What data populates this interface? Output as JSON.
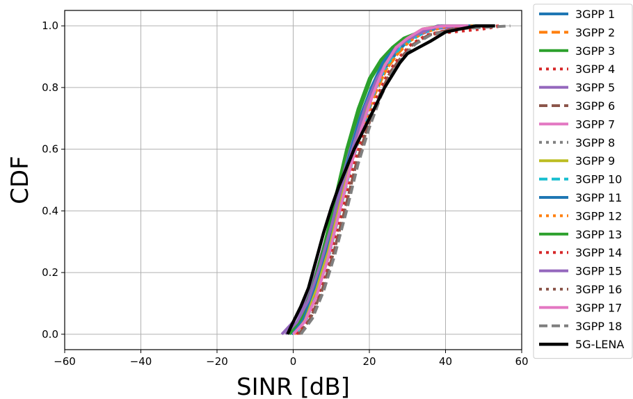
{
  "chart_data": {
    "type": "line",
    "xlabel": "SINR [dB]",
    "ylabel": "CDF",
    "xlim": [
      -60,
      60
    ],
    "ylim": [
      -0.05,
      1.05
    ],
    "xticks": [
      -60,
      -40,
      -20,
      0,
      20,
      40,
      60
    ],
    "yticks": [
      0.0,
      0.2,
      0.4,
      0.6,
      0.8,
      1.0
    ],
    "xtick_labels": [
      "−60",
      "−40",
      "−20",
      "0",
      "20",
      "40",
      "60"
    ],
    "ytick_labels": [
      "0.0",
      "0.2",
      "0.4",
      "0.6",
      "0.8",
      "1.0"
    ],
    "grid": true,
    "legend_position": "outside-right",
    "series": [
      {
        "name": "3GPP 1",
        "color": "#1f77b4",
        "dash": "solid",
        "points": [
          [
            0.0,
            0.0
          ],
          [
            3.0,
            0.05
          ],
          [
            6.0,
            0.14
          ],
          [
            9.0,
            0.26
          ],
          [
            12.0,
            0.41
          ],
          [
            15.0,
            0.56
          ],
          [
            18.0,
            0.68
          ],
          [
            21.0,
            0.78
          ],
          [
            24.0,
            0.86
          ],
          [
            27.0,
            0.91
          ],
          [
            30.0,
            0.95
          ],
          [
            34.0,
            0.98
          ],
          [
            40.0,
            1.0
          ],
          [
            50.0,
            1.0
          ]
        ]
      },
      {
        "name": "3GPP 2",
        "color": "#ff7f0e",
        "dash": "dashed",
        "points": [
          [
            0.5,
            0.0
          ],
          [
            3.5,
            0.05
          ],
          [
            6.5,
            0.14
          ],
          [
            9.5,
            0.26
          ],
          [
            12.5,
            0.41
          ],
          [
            15.5,
            0.56
          ],
          [
            18.5,
            0.68
          ],
          [
            21.5,
            0.78
          ],
          [
            24.5,
            0.86
          ],
          [
            27.5,
            0.91
          ],
          [
            30.5,
            0.95
          ],
          [
            34.5,
            0.98
          ],
          [
            41.0,
            1.0
          ],
          [
            52.0,
            1.0
          ]
        ]
      },
      {
        "name": "3GPP 3",
        "color": "#2ca02c",
        "dash": "solid",
        "points": [
          [
            -0.5,
            0.0
          ],
          [
            2.5,
            0.05
          ],
          [
            5.5,
            0.15
          ],
          [
            8.5,
            0.28
          ],
          [
            11.5,
            0.44
          ],
          [
            14.5,
            0.6
          ],
          [
            17.5,
            0.73
          ],
          [
            20.5,
            0.83
          ],
          [
            23.5,
            0.89
          ],
          [
            26.5,
            0.93
          ],
          [
            29.5,
            0.96
          ],
          [
            33.5,
            0.98
          ],
          [
            39.0,
            1.0
          ],
          [
            48.0,
            1.0
          ]
        ]
      },
      {
        "name": "3GPP 4",
        "color": "#d62728",
        "dash": "dotted",
        "points": [
          [
            1.0,
            0.0
          ],
          [
            4.0,
            0.05
          ],
          [
            7.0,
            0.14
          ],
          [
            10.0,
            0.26
          ],
          [
            13.0,
            0.4
          ],
          [
            16.0,
            0.55
          ],
          [
            19.0,
            0.67
          ],
          [
            22.0,
            0.77
          ],
          [
            25.0,
            0.85
          ],
          [
            28.0,
            0.9
          ],
          [
            31.0,
            0.94
          ],
          [
            35.0,
            0.97
          ],
          [
            42.0,
            0.98
          ],
          [
            50.0,
            0.99
          ],
          [
            55.0,
            1.0
          ]
        ]
      },
      {
        "name": "3GPP 5",
        "color": "#9467bd",
        "dash": "solid",
        "points": [
          [
            -3.0,
            0.0
          ],
          [
            0.0,
            0.04
          ],
          [
            3.0,
            0.1
          ],
          [
            6.0,
            0.2
          ],
          [
            9.0,
            0.33
          ],
          [
            12.0,
            0.47
          ],
          [
            15.0,
            0.6
          ],
          [
            18.0,
            0.72
          ],
          [
            21.0,
            0.81
          ],
          [
            24.0,
            0.88
          ],
          [
            27.0,
            0.93
          ],
          [
            31.0,
            0.96
          ],
          [
            37.0,
            0.99
          ],
          [
            45.0,
            1.0
          ]
        ]
      },
      {
        "name": "3GPP 6",
        "color": "#8c564b",
        "dash": "dashed",
        "points": [
          [
            1.5,
            0.0
          ],
          [
            4.5,
            0.05
          ],
          [
            7.5,
            0.14
          ],
          [
            10.5,
            0.26
          ],
          [
            13.5,
            0.4
          ],
          [
            16.5,
            0.55
          ],
          [
            19.5,
            0.67
          ],
          [
            22.5,
            0.77
          ],
          [
            25.5,
            0.85
          ],
          [
            28.5,
            0.9
          ],
          [
            31.5,
            0.94
          ],
          [
            35.5,
            0.97
          ],
          [
            42.0,
            0.99
          ],
          [
            52.0,
            1.0
          ]
        ]
      },
      {
        "name": "3GPP 7",
        "color": "#e377c2",
        "dash": "solid",
        "points": [
          [
            0.0,
            0.0
          ],
          [
            3.0,
            0.04
          ],
          [
            6.0,
            0.12
          ],
          [
            9.0,
            0.24
          ],
          [
            12.0,
            0.39
          ],
          [
            15.0,
            0.54
          ],
          [
            18.0,
            0.67
          ],
          [
            21.0,
            0.78
          ],
          [
            24.0,
            0.87
          ],
          [
            27.0,
            0.93
          ],
          [
            30.0,
            0.96
          ],
          [
            34.0,
            0.99
          ],
          [
            40.0,
            1.0
          ],
          [
            46.0,
            1.0
          ]
        ]
      },
      {
        "name": "3GPP 8",
        "color": "#7f7f7f",
        "dash": "dotted",
        "points": [
          [
            1.0,
            0.0
          ],
          [
            4.0,
            0.05
          ],
          [
            7.0,
            0.14
          ],
          [
            10.0,
            0.26
          ],
          [
            13.0,
            0.4
          ],
          [
            16.0,
            0.55
          ],
          [
            19.0,
            0.67
          ],
          [
            22.0,
            0.77
          ],
          [
            25.0,
            0.85
          ],
          [
            28.0,
            0.9
          ],
          [
            31.0,
            0.94
          ],
          [
            35.0,
            0.97
          ],
          [
            42.0,
            0.99
          ],
          [
            50.0,
            1.0
          ]
        ]
      },
      {
        "name": "3GPP 9",
        "color": "#bcbd22",
        "dash": "solid",
        "points": [
          [
            0.0,
            0.0
          ],
          [
            3.0,
            0.05
          ],
          [
            6.0,
            0.14
          ],
          [
            9.0,
            0.27
          ],
          [
            12.0,
            0.42
          ],
          [
            15.0,
            0.57
          ],
          [
            18.0,
            0.7
          ],
          [
            21.0,
            0.8
          ],
          [
            24.0,
            0.88
          ],
          [
            27.0,
            0.93
          ],
          [
            30.0,
            0.96
          ],
          [
            34.0,
            0.99
          ],
          [
            39.0,
            1.0
          ],
          [
            45.0,
            1.0
          ]
        ]
      },
      {
        "name": "3GPP 10",
        "color": "#17becf",
        "dash": "dashed",
        "points": [
          [
            0.5,
            0.0
          ],
          [
            3.5,
            0.05
          ],
          [
            6.5,
            0.14
          ],
          [
            9.5,
            0.26
          ],
          [
            12.5,
            0.41
          ],
          [
            15.5,
            0.56
          ],
          [
            18.5,
            0.68
          ],
          [
            21.5,
            0.79
          ],
          [
            24.5,
            0.87
          ],
          [
            27.5,
            0.92
          ],
          [
            30.5,
            0.95
          ],
          [
            34.5,
            0.98
          ],
          [
            40.0,
            1.0
          ],
          [
            48.0,
            1.0
          ]
        ]
      },
      {
        "name": "3GPP 11",
        "color": "#1f77b4",
        "dash": "solid",
        "points": [
          [
            -0.5,
            0.0
          ],
          [
            2.5,
            0.05
          ],
          [
            5.5,
            0.15
          ],
          [
            8.5,
            0.27
          ],
          [
            11.5,
            0.42
          ],
          [
            14.5,
            0.57
          ],
          [
            17.5,
            0.7
          ],
          [
            20.5,
            0.8
          ],
          [
            23.5,
            0.88
          ],
          [
            26.5,
            0.93
          ],
          [
            29.5,
            0.96
          ],
          [
            33.5,
            0.98
          ],
          [
            39.0,
            1.0
          ],
          [
            47.0,
            1.0
          ]
        ]
      },
      {
        "name": "3GPP 12",
        "color": "#ff7f0e",
        "dash": "dotted",
        "points": [
          [
            0.5,
            0.0
          ],
          [
            3.5,
            0.05
          ],
          [
            6.5,
            0.14
          ],
          [
            9.5,
            0.26
          ],
          [
            12.5,
            0.41
          ],
          [
            15.5,
            0.56
          ],
          [
            18.5,
            0.68
          ],
          [
            21.5,
            0.78
          ],
          [
            24.5,
            0.86
          ],
          [
            27.5,
            0.91
          ],
          [
            30.5,
            0.95
          ],
          [
            34.5,
            0.98
          ],
          [
            41.0,
            1.0
          ],
          [
            50.0,
            1.0
          ]
        ]
      },
      {
        "name": "3GPP 13",
        "color": "#2ca02c",
        "dash": "solid",
        "points": [
          [
            -1.0,
            0.0
          ],
          [
            2.0,
            0.05
          ],
          [
            5.0,
            0.15
          ],
          [
            8.0,
            0.28
          ],
          [
            11.0,
            0.44
          ],
          [
            14.0,
            0.6
          ],
          [
            17.0,
            0.73
          ],
          [
            20.0,
            0.83
          ],
          [
            23.0,
            0.89
          ],
          [
            26.0,
            0.93
          ],
          [
            29.0,
            0.96
          ],
          [
            33.0,
            0.98
          ],
          [
            38.0,
            1.0
          ],
          [
            46.0,
            1.0
          ]
        ]
      },
      {
        "name": "3GPP 14",
        "color": "#d62728",
        "dash": "dotted",
        "points": [
          [
            1.0,
            0.0
          ],
          [
            4.0,
            0.05
          ],
          [
            7.0,
            0.14
          ],
          [
            10.0,
            0.26
          ],
          [
            13.0,
            0.4
          ],
          [
            16.0,
            0.55
          ],
          [
            19.0,
            0.67
          ],
          [
            22.0,
            0.77
          ],
          [
            25.0,
            0.85
          ],
          [
            28.0,
            0.9
          ],
          [
            31.0,
            0.94
          ],
          [
            35.0,
            0.97
          ],
          [
            42.0,
            0.99
          ],
          [
            54.0,
            1.0
          ]
        ]
      },
      {
        "name": "3GPP 15",
        "color": "#9467bd",
        "dash": "solid",
        "points": [
          [
            -2.0,
            0.0
          ],
          [
            1.0,
            0.04
          ],
          [
            4.0,
            0.11
          ],
          [
            7.0,
            0.22
          ],
          [
            10.0,
            0.35
          ],
          [
            13.0,
            0.49
          ],
          [
            16.0,
            0.62
          ],
          [
            19.0,
            0.74
          ],
          [
            22.0,
            0.83
          ],
          [
            25.0,
            0.89
          ],
          [
            28.0,
            0.94
          ],
          [
            32.0,
            0.97
          ],
          [
            38.0,
            1.0
          ],
          [
            46.0,
            1.0
          ]
        ]
      },
      {
        "name": "3GPP 16",
        "color": "#8c564b",
        "dash": "dotted",
        "points": [
          [
            1.5,
            0.0
          ],
          [
            4.5,
            0.05
          ],
          [
            7.5,
            0.14
          ],
          [
            10.5,
            0.26
          ],
          [
            13.5,
            0.4
          ],
          [
            16.5,
            0.55
          ],
          [
            19.5,
            0.67
          ],
          [
            22.5,
            0.77
          ],
          [
            25.5,
            0.85
          ],
          [
            28.5,
            0.9
          ],
          [
            31.5,
            0.94
          ],
          [
            35.5,
            0.97
          ],
          [
            42.0,
            0.99
          ],
          [
            52.0,
            1.0
          ]
        ]
      },
      {
        "name": "3GPP 17",
        "color": "#e377c2",
        "dash": "solid",
        "points": [
          [
            0.0,
            0.0
          ],
          [
            3.0,
            0.04
          ],
          [
            6.0,
            0.12
          ],
          [
            9.0,
            0.24
          ],
          [
            12.0,
            0.39
          ],
          [
            15.0,
            0.54
          ],
          [
            18.0,
            0.67
          ],
          [
            21.0,
            0.78
          ],
          [
            24.0,
            0.87
          ],
          [
            27.0,
            0.93
          ],
          [
            30.0,
            0.96
          ],
          [
            34.0,
            0.99
          ],
          [
            40.0,
            1.0
          ],
          [
            46.0,
            1.0
          ]
        ]
      },
      {
        "name": "3GPP 18",
        "color": "#7f7f7f",
        "dash": "dashed",
        "points": [
          [
            2.0,
            0.0
          ],
          [
            5.0,
            0.05
          ],
          [
            8.0,
            0.14
          ],
          [
            11.0,
            0.26
          ],
          [
            14.0,
            0.4
          ],
          [
            17.0,
            0.55
          ],
          [
            20.0,
            0.67
          ],
          [
            23.0,
            0.77
          ],
          [
            26.0,
            0.85
          ],
          [
            29.0,
            0.9
          ],
          [
            32.0,
            0.94
          ],
          [
            36.0,
            0.97
          ],
          [
            43.0,
            0.99
          ],
          [
            57.0,
            1.0
          ]
        ]
      },
      {
        "name": "5G-LENA",
        "color": "#000000",
        "dash": "solid",
        "points": [
          [
            -1.5,
            0.0
          ],
          [
            0.0,
            0.04
          ],
          [
            2.0,
            0.09
          ],
          [
            4.0,
            0.15
          ],
          [
            6.0,
            0.24
          ],
          [
            8.0,
            0.33
          ],
          [
            10.0,
            0.41
          ],
          [
            12.0,
            0.48
          ],
          [
            14.0,
            0.54
          ],
          [
            16.0,
            0.6
          ],
          [
            18.0,
            0.65
          ],
          [
            20.0,
            0.7
          ],
          [
            22.0,
            0.75
          ],
          [
            24.0,
            0.8
          ],
          [
            26.0,
            0.84
          ],
          [
            28.0,
            0.88
          ],
          [
            30.0,
            0.91
          ],
          [
            33.0,
            0.93
          ],
          [
            36.0,
            0.95
          ],
          [
            40.0,
            0.98
          ],
          [
            44.0,
            0.99
          ],
          [
            48.0,
            1.0
          ],
          [
            53.0,
            1.0
          ]
        ]
      }
    ]
  }
}
